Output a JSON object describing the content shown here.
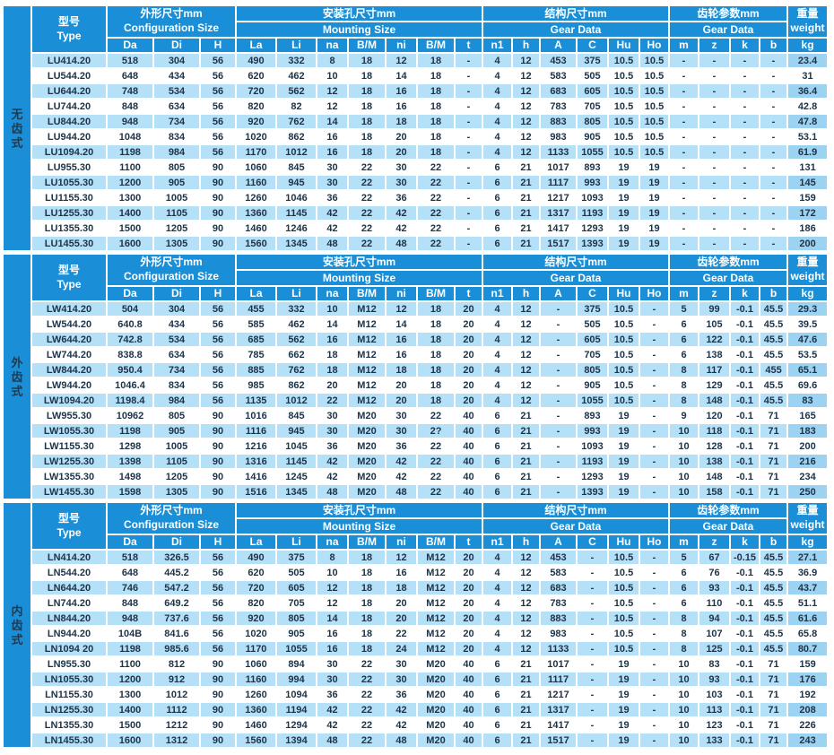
{
  "colors": {
    "header_blue": "#1a8fd8",
    "row_light_blue": "#b4e0f8",
    "weight_col_blue": "#9cd3f2",
    "text_dark": "#1d3348",
    "header_text": "#ffffff"
  },
  "table": {
    "header": {
      "type_cn": "型号",
      "type_en": "Type",
      "groups": [
        {
          "cn": "外形尺寸mm",
          "en": "Configuration Size"
        },
        {
          "cn": "安装孔尺寸mm",
          "en": "Mounting Size"
        },
        {
          "cn": "结构尺寸mm",
          "en": "Gear Data"
        },
        {
          "cn": "齿轮参数mm",
          "en": "Gear Data"
        }
      ],
      "weight_cn": "重量",
      "weight_en": "weight",
      "sub_cols": [
        "Da",
        "Di",
        "H",
        "La",
        "Li",
        "na",
        "B/M",
        "ni",
        "B/M",
        "t",
        "n1",
        "h",
        "A",
        "C",
        "Hu",
        "Ho",
        "m",
        "z",
        "k",
        "b",
        "kg"
      ]
    },
    "sections": [
      {
        "label": "无齿式",
        "rows": [
          [
            "LU414.20",
            "518",
            "304",
            "56",
            "490",
            "332",
            "8",
            "18",
            "12",
            "18",
            "-",
            "4",
            "12",
            "453",
            "375",
            "10.5",
            "10.5",
            "-",
            "-",
            "-",
            "-",
            "23.4"
          ],
          [
            "LU544.20",
            "648",
            "434",
            "56",
            "620",
            "462",
            "10",
            "18",
            "14",
            "18",
            "-",
            "4",
            "12",
            "583",
            "505",
            "10.5",
            "10.5",
            "-",
            "-",
            "-",
            "-",
            "31"
          ],
          [
            "LU644.20",
            "748",
            "534",
            "56",
            "720",
            "562",
            "12",
            "18",
            "16",
            "18",
            "-",
            "4",
            "12",
            "683",
            "605",
            "10.5",
            "10.5",
            "-",
            "-",
            "-",
            "-",
            "36.4"
          ],
          [
            "LU744.20",
            "848",
            "634",
            "56",
            "820",
            "82",
            "12",
            "18",
            "16",
            "18",
            "-",
            "4",
            "12",
            "783",
            "705",
            "10.5",
            "10.5",
            "-",
            "-",
            "-",
            "-",
            "42.8"
          ],
          [
            "LU844.20",
            "948",
            "734",
            "56",
            "920",
            "762",
            "14",
            "18",
            "18",
            "18",
            "-",
            "4",
            "12",
            "883",
            "805",
            "10.5",
            "10.5",
            "-",
            "-",
            "-",
            "-",
            "47.8"
          ],
          [
            "LU944.20",
            "1048",
            "834",
            "56",
            "1020",
            "862",
            "16",
            "18",
            "20",
            "18",
            "-",
            "4",
            "12",
            "983",
            "905",
            "10.5",
            "10.5",
            "-",
            "-",
            "-",
            "-",
            "53.1"
          ],
          [
            "LU1094.20",
            "1198",
            "984",
            "56",
            "1170",
            "1012",
            "16",
            "18",
            "20",
            "18",
            "-",
            "4",
            "12",
            "1133",
            "1055",
            "10.5",
            "10.5",
            "-",
            "-",
            "-",
            "-",
            "61.9"
          ],
          [
            "LU955.30",
            "1100",
            "805",
            "90",
            "1060",
            "845",
            "30",
            "22",
            "30",
            "22",
            "-",
            "6",
            "21",
            "1017",
            "893",
            "19",
            "19",
            "-",
            "-",
            "-",
            "-",
            "131"
          ],
          [
            "LU1055.30",
            "1200",
            "905",
            "90",
            "1160",
            "945",
            "30",
            "22",
            "30",
            "22",
            "-",
            "6",
            "21",
            "1117",
            "993",
            "19",
            "19",
            "-",
            "-",
            "-",
            "-",
            "145"
          ],
          [
            "LU1155.30",
            "1300",
            "1005",
            "90",
            "1260",
            "1046",
            "36",
            "22",
            "36",
            "22",
            "-",
            "6",
            "21",
            "1217",
            "1093",
            "19",
            "19",
            "-",
            "-",
            "-",
            "-",
            "159"
          ],
          [
            "LU1255.30",
            "1400",
            "1105",
            "90",
            "1360",
            "1145",
            "42",
            "22",
            "42",
            "22",
            "-",
            "6",
            "21",
            "1317",
            "1193",
            "19",
            "19",
            "-",
            "-",
            "-",
            "-",
            "172"
          ],
          [
            "LU1355.30",
            "1500",
            "1205",
            "90",
            "1460",
            "1246",
            "42",
            "22",
            "42",
            "22",
            "-",
            "6",
            "21",
            "1417",
            "1293",
            "19",
            "19",
            "-",
            "-",
            "-",
            "-",
            "186"
          ],
          [
            "LU1455.30",
            "1600",
            "1305",
            "90",
            "1560",
            "1345",
            "48",
            "22",
            "48",
            "22",
            "-",
            "6",
            "21",
            "1517",
            "1393",
            "19",
            "19",
            "-",
            "-",
            "-",
            "-",
            "200"
          ]
        ]
      },
      {
        "label": "外齿式",
        "rows": [
          [
            "LW414.20",
            "504",
            "304",
            "56",
            "455",
            "332",
            "10",
            "M12",
            "12",
            "18",
            "20",
            "4",
            "12",
            "-",
            "375",
            "10.5",
            "-",
            "5",
            "99",
            "-0.1",
            "45.5",
            "29.3"
          ],
          [
            "LW544.20",
            "640.8",
            "434",
            "56",
            "585",
            "462",
            "14",
            "M12",
            "14",
            "18",
            "20",
            "4",
            "12",
            "-",
            "505",
            "10.5",
            "-",
            "6",
            "105",
            "-0.1",
            "45.5",
            "39.5"
          ],
          [
            "LW644.20",
            "742.8",
            "534",
            "56",
            "685",
            "562",
            "16",
            "M12",
            "16",
            "18",
            "20",
            "4",
            "12",
            "-",
            "605",
            "10.5",
            "-",
            "6",
            "122",
            "-0.1",
            "45.5",
            "47.6"
          ],
          [
            "LW744.20",
            "838.8",
            "634",
            "56",
            "785",
            "662",
            "18",
            "M12",
            "16",
            "18",
            "20",
            "4",
            "12",
            "-",
            "705",
            "10.5",
            "-",
            "6",
            "138",
            "-0.1",
            "45.5",
            "53.5"
          ],
          [
            "LW844.20",
            "950.4",
            "734",
            "56",
            "885",
            "762",
            "18",
            "M12",
            "18",
            "18",
            "20",
            "4",
            "12",
            "-",
            "805",
            "10.5",
            "-",
            "8",
            "117",
            "-0.1",
            "455",
            "65.1"
          ],
          [
            "LW944.20",
            "1046.4",
            "834",
            "56",
            "985",
            "862",
            "20",
            "M12",
            "20",
            "18",
            "20",
            "4",
            "12",
            "-",
            "905",
            "10.5",
            "-",
            "8",
            "129",
            "-0.1",
            "45.5",
            "69.6"
          ],
          [
            "LW1094.20",
            "1198.4",
            "984",
            "56",
            "1135",
            "1012",
            "22",
            "M12",
            "20",
            "18",
            "20",
            "4",
            "12",
            "-",
            "1055",
            "10.5",
            "-",
            "8",
            "148",
            "-0.1",
            "45.5",
            "83"
          ],
          [
            "LW955.30",
            "10962",
            "805",
            "90",
            "1016",
            "845",
            "30",
            "M20",
            "30",
            "22",
            "40",
            "6",
            "21",
            "-",
            "893",
            "19",
            "-",
            "9",
            "120",
            "-0.1",
            "71",
            "165"
          ],
          [
            "LW1055.30",
            "1198",
            "905",
            "90",
            "1116",
            "945",
            "30",
            "M20",
            "30",
            "2?",
            "40",
            "6",
            "21",
            "-",
            "993",
            "19",
            "-",
            "10",
            "118",
            "-0.1",
            "71",
            "183"
          ],
          [
            "LW1155.30",
            "1298",
            "1005",
            "90",
            "1216",
            "1045",
            "36",
            "M20",
            "36",
            "22",
            "40",
            "6",
            "21",
            "-",
            "1093",
            "19",
            "-",
            "10",
            "128",
            "-0.1",
            "71",
            "200"
          ],
          [
            "LW1255.30",
            "1398",
            "1105",
            "90",
            "1316",
            "1145",
            "42",
            "M20",
            "42",
            "22",
            "40",
            "6",
            "21",
            "-",
            "1193",
            "19",
            "-",
            "10",
            "138",
            "-0.1",
            "71",
            "216"
          ],
          [
            "LW1355.30",
            "1498",
            "1205",
            "90",
            "1416",
            "1245",
            "42",
            "M20",
            "42",
            "22",
            "40",
            "6",
            "21",
            "-",
            "1293",
            "19",
            "-",
            "10",
            "148",
            "-0.1",
            "71",
            "234"
          ],
          [
            "LW1455.30",
            "1598",
            "1305",
            "90",
            "1516",
            "1345",
            "48",
            "M20",
            "48",
            "22",
            "40",
            "6",
            "21",
            "-",
            "1393",
            "19",
            "-",
            "10",
            "158",
            "-0.1",
            "71",
            "250"
          ]
        ]
      },
      {
        "label": "内齿式",
        "rows": [
          [
            "LN414.20",
            "518",
            "326.5",
            "56",
            "490",
            "375",
            "8",
            "18",
            "12",
            "M12",
            "20",
            "4",
            "12",
            "453",
            "-",
            "10.5",
            "-",
            "5",
            "67",
            "-0.15",
            "45.5",
            "27.1"
          ],
          [
            "LN544.20",
            "648",
            "445.2",
            "56",
            "620",
            "505",
            "10",
            "18",
            "16",
            "M12",
            "20",
            "4",
            "12",
            "583",
            "-",
            "10.5",
            "-",
            "6",
            "76",
            "-0.1",
            "45.5",
            "36.9"
          ],
          [
            "LN644.20",
            "746",
            "547.2",
            "56",
            "720",
            "605",
            "12",
            "18",
            "18",
            "M12",
            "20",
            "4",
            "12",
            "683",
            "-",
            "10.5",
            "-",
            "6",
            "93",
            "-0.1",
            "45.5",
            "43.7"
          ],
          [
            "LN744.20",
            "848",
            "649.2",
            "56",
            "820",
            "705",
            "12",
            "18",
            "20",
            "M12",
            "20",
            "4",
            "12",
            "783",
            "-",
            "10.5",
            "-",
            "6",
            "110",
            "-0.1",
            "45.5",
            "51.1"
          ],
          [
            "LN844.20",
            "948",
            "737.6",
            "56",
            "920",
            "805",
            "14",
            "18",
            "20",
            "M12",
            "20",
            "4",
            "12",
            "883",
            "-",
            "10.5",
            "-",
            "8",
            "94",
            "-0.1",
            "45.5",
            "61.6"
          ],
          [
            "LN944.20",
            "104B",
            "841.6",
            "56",
            "1020",
            "905",
            "16",
            "18",
            "22",
            "M12",
            "20",
            "4",
            "12",
            "983",
            "-",
            "10.5",
            "-",
            "8",
            "107",
            "-0.1",
            "45.5",
            "65.8"
          ],
          [
            "LN1094 20",
            "1198",
            "985.6",
            "56",
            "1170",
            "1055",
            "16",
            "18",
            "24",
            "M12",
            "20",
            "4",
            "12",
            "1133",
            "-",
            "10.5",
            "-",
            "8",
            "125",
            "-0.1",
            "45.5",
            "80.7"
          ],
          [
            "LN955.30",
            "1100",
            "812",
            "90",
            "1060",
            "894",
            "30",
            "22",
            "30",
            "M20",
            "40",
            "6",
            "21",
            "1017",
            "-",
            "19",
            "-",
            "10",
            "83",
            "-0.1",
            "71",
            "159"
          ],
          [
            "LN1055.30",
            "1200",
            "912",
            "90",
            "1160",
            "994",
            "30",
            "22",
            "30",
            "M20",
            "40",
            "6",
            "21",
            "1117",
            "-",
            "19",
            "-",
            "10",
            "93",
            "-0.1",
            "71",
            "176"
          ],
          [
            "LN1155.30",
            "1300",
            "1012",
            "90",
            "1260",
            "1094",
            "36",
            "22",
            "36",
            "M20",
            "40",
            "6",
            "21",
            "1217",
            "-",
            "19",
            "-",
            "10",
            "103",
            "-0.1",
            "71",
            "192"
          ],
          [
            "LN1255.30",
            "1400",
            "1112",
            "90",
            "1360",
            "1194",
            "42",
            "22",
            "42",
            "M20",
            "40",
            "6",
            "21",
            "1317",
            "-",
            "19",
            "-",
            "10",
            "113",
            "-0.1",
            "71",
            "208"
          ],
          [
            "LN1355.30",
            "1500",
            "1212",
            "90",
            "1460",
            "1294",
            "42",
            "22",
            "42",
            "M20",
            "40",
            "6",
            "21",
            "1417",
            "-",
            "19",
            "-",
            "10",
            "123",
            "-0.1",
            "71",
            "226"
          ],
          [
            "LN1455.30",
            "1600",
            "1312",
            "90",
            "1560",
            "1394",
            "48",
            "22",
            "48",
            "M20",
            "40",
            "6",
            "21",
            "1517",
            "-",
            "19",
            "-",
            "10",
            "133",
            "-0.1",
            "71",
            "243"
          ]
        ]
      }
    ]
  }
}
